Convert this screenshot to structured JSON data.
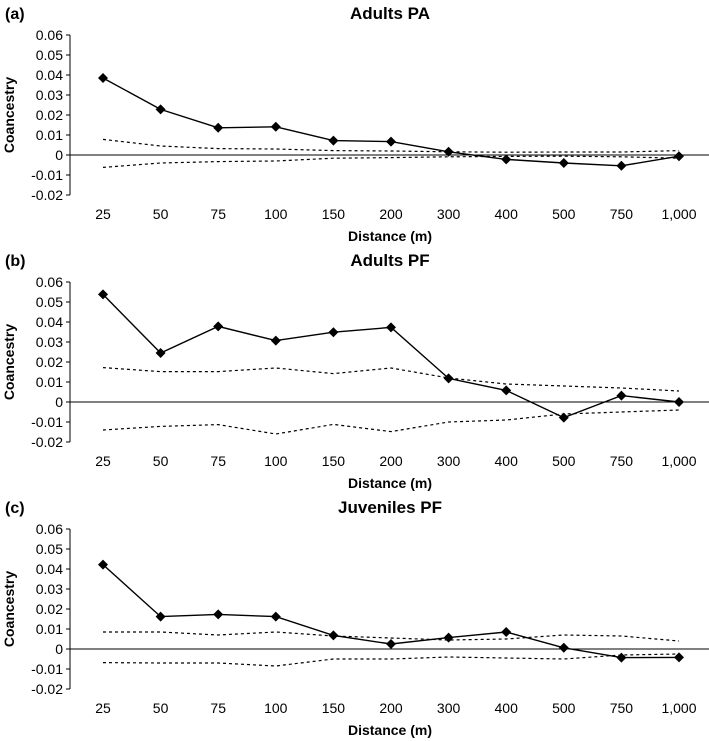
{
  "chart_data": [
    {
      "type": "line",
      "panel_label": "(a)",
      "title": "Adults PA",
      "xlabel": "Distance (m)",
      "ylabel": "Coancestry",
      "categories": [
        "25",
        "50",
        "75",
        "100",
        "150",
        "200",
        "300",
        "400",
        "500",
        "750",
        "1,000"
      ],
      "ylim": [
        -0.02,
        0.06
      ],
      "yticks": [
        "0.06",
        "0.05",
        "0.04",
        "0.03",
        "0.02",
        "0.01",
        "0",
        "-0.01",
        "-0.02"
      ],
      "series": [
        {
          "name": "Coancestry",
          "style": "solid-diamond",
          "values": [
            0.0385,
            0.0228,
            0.0136,
            0.0141,
            0.0072,
            0.0067,
            0.0016,
            -0.0022,
            -0.004,
            -0.0054,
            -0.0006
          ]
        },
        {
          "name": "Upper 95% CI",
          "style": "dotted",
          "values": [
            0.0078,
            0.0045,
            0.0032,
            0.003,
            0.0022,
            0.002,
            0.0016,
            0.0014,
            0.0015,
            0.0015,
            0.0022
          ]
        },
        {
          "name": "Lower 95% CI",
          "style": "dotted",
          "values": [
            -0.0062,
            -0.004,
            -0.0033,
            -0.003,
            -0.0016,
            -0.0013,
            -0.0009,
            -0.0007,
            -0.0006,
            -0.0009,
            -0.0016
          ]
        }
      ]
    },
    {
      "type": "line",
      "panel_label": "(b)",
      "title": "Adults PF",
      "xlabel": "Distance (m)",
      "ylabel": "Coancestry",
      "categories": [
        "25",
        "50",
        "75",
        "100",
        "150",
        "200",
        "300",
        "400",
        "500",
        "750",
        "1,000"
      ],
      "ylim": [
        -0.02,
        0.06
      ],
      "yticks": [
        "0.06",
        "0.05",
        "0.04",
        "0.03",
        "0.02",
        "0.01",
        "0",
        "-0.01",
        "-0.02"
      ],
      "series": [
        {
          "name": "Coancestry",
          "style": "solid-diamond",
          "values": [
            0.0538,
            0.0245,
            0.0378,
            0.0307,
            0.0349,
            0.0373,
            0.0118,
            0.0058,
            -0.0078,
            0.0032,
            0.0
          ]
        },
        {
          "name": "Upper 95% CI",
          "style": "dotted",
          "values": [
            0.0172,
            0.0152,
            0.0152,
            0.017,
            0.0142,
            0.017,
            0.012,
            0.009,
            0.008,
            0.007,
            0.0055
          ]
        },
        {
          "name": "Lower 95% CI",
          "style": "dotted",
          "values": [
            -0.014,
            -0.0122,
            -0.0113,
            -0.016,
            -0.0112,
            -0.0148,
            -0.01,
            -0.009,
            -0.006,
            -0.005,
            -0.004
          ]
        }
      ]
    },
    {
      "type": "line",
      "panel_label": "(c)",
      "title": "Juveniles PF",
      "xlabel": "Distance (m)",
      "ylabel": "Coancestry",
      "categories": [
        "25",
        "50",
        "75",
        "100",
        "150",
        "200",
        "300",
        "400",
        "500",
        "750",
        "1,000"
      ],
      "ylim": [
        -0.02,
        0.06
      ],
      "yticks": [
        "0.06",
        "0.05",
        "0.04",
        "0.03",
        "0.02",
        "0.01",
        "0",
        "-0.01",
        "-0.02"
      ],
      "series": [
        {
          "name": "Coancestry",
          "style": "solid-diamond",
          "values": [
            0.0422,
            0.0162,
            0.0173,
            0.0162,
            0.0068,
            0.0025,
            0.0057,
            0.0085,
            0.0006,
            -0.0043,
            -0.0042
          ]
        },
        {
          "name": "Upper 95% CI",
          "style": "dotted",
          "values": [
            0.0085,
            0.0085,
            0.007,
            0.0085,
            0.0065,
            0.0055,
            0.0045,
            0.005,
            0.007,
            0.0065,
            0.004
          ]
        },
        {
          "name": "Lower 95% CI",
          "style": "dotted",
          "values": [
            -0.0068,
            -0.007,
            -0.007,
            -0.0085,
            -0.005,
            -0.005,
            -0.004,
            -0.0045,
            -0.005,
            -0.003,
            -0.0025
          ]
        }
      ]
    }
  ],
  "colors": {
    "line": "#000000",
    "background": "#ffffff"
  }
}
